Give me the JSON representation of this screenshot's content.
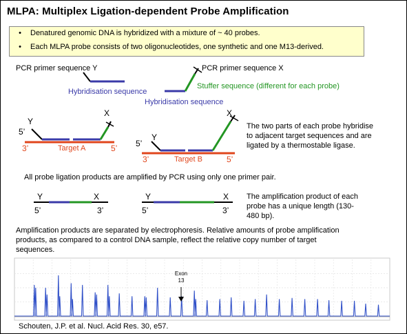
{
  "title": "MLPA:  Multiplex Ligation-dependent Probe Amplification",
  "bullets": [
    "Denatured genomic DNA is hybridized with a mixture of ~ 40 probes.",
    "Each MLPA probe consists of two oligonucleotides, one synthetic and one M13-derived."
  ],
  "bullet_symbol": "•",
  "probe_labels": {
    "primer_y": "PCR primer sequence Y",
    "primer_x": "PCR primer sequence X",
    "hybrid_left": "Hybridisation sequence",
    "hybrid_right": "Hybridisation sequence",
    "stuffer": "Stuffer sequence (different for each probe)"
  },
  "hybrid": {
    "y": "Y",
    "x": "X",
    "five_prime": "5’",
    "three_prime": "3’",
    "target_a": "Target A",
    "target_b": "Target B",
    "description": [
      "The two parts of each probe hybridise",
      "to adjacent target sequences and are",
      "ligated by a thermostable ligase."
    ]
  },
  "amplified_line": "All  probe ligation products are amplified by PCR using only one primer pair.",
  "products": {
    "y": "Y",
    "x": "X",
    "five_prime": "5’",
    "three_prime": "3’",
    "description": [
      "The amplification product of each",
      "probe has a unique length (130-",
      "480 bp)."
    ]
  },
  "electrophoresis_text": [
    "Amplification products are separated by electrophoresis. Relative amounts of probe amplification",
    "products, as compared to a control DNA sample, reflect the relative copy number of target",
    "sequences."
  ],
  "exon_label": [
    "Exon",
    "13"
  ],
  "citation": "Schouten, J.P. et al. Nucl. Acid Res. 30, e57.",
  "colors": {
    "blue": "#3a3aa8",
    "green": "#239623",
    "red": "#e0461c",
    "black": "#000000",
    "box_fill": "#ffffcc",
    "trace": "#3050c8"
  },
  "peaks": [
    {
      "s": 14,
      "v": 0.55
    },
    {
      "s": 15,
      "v": 0.5
    },
    {
      "s": 22,
      "v": 0.5
    },
    {
      "s": 23,
      "v": 0.38
    },
    {
      "s": 31,
      "v": 0.72
    },
    {
      "s": 32,
      "v": 0.35
    },
    {
      "s": 40,
      "v": 0.58
    },
    {
      "s": 41,
      "v": 0.3
    },
    {
      "s": 48,
      "v": 0.55
    },
    {
      "s": 57,
      "v": 0.42
    },
    {
      "s": 58,
      "v": 0.38
    },
    {
      "s": 66,
      "v": 0.55
    },
    {
      "s": 67,
      "v": 0.35
    },
    {
      "s": 74,
      "v": 0.4
    },
    {
      "s": 83,
      "v": 0.35
    },
    {
      "s": 92,
      "v": 0.35
    },
    {
      "s": 93,
      "v": 0.33
    },
    {
      "s": 101,
      "v": 0.5
    },
    {
      "s": 110,
      "v": 0.33
    },
    {
      "s": 118,
      "v": 0.35
    },
    {
      "s": 127,
      "v": 0.45
    },
    {
      "s": 128,
      "v": 0.3
    },
    {
      "s": 136,
      "v": 0.28
    },
    {
      "s": 145,
      "v": 0.3
    },
    {
      "s": 153,
      "v": 0.33
    },
    {
      "s": 162,
      "v": 0.27
    },
    {
      "s": 170,
      "v": 0.3
    },
    {
      "s": 178,
      "v": 0.38
    },
    {
      "s": 187,
      "v": 0.3
    },
    {
      "s": 196,
      "v": 0.32
    },
    {
      "s": 205,
      "v": 0.3
    },
    {
      "s": 214,
      "v": 0.3
    },
    {
      "s": 222,
      "v": 0.28
    },
    {
      "s": 231,
      "v": 0.27
    },
    {
      "s": 240,
      "v": 0.27
    },
    {
      "s": 248,
      "v": 0.22
    },
    {
      "s": 257,
      "v": 0.2
    }
  ]
}
